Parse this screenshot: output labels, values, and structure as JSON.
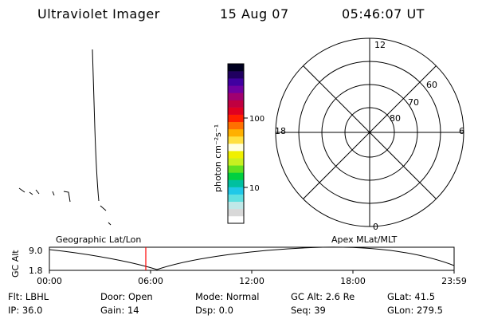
{
  "header": {
    "instrument": "Ultraviolet Imager",
    "date": "15 Aug 07",
    "time": "05:46:07 UT"
  },
  "colorbar": {
    "label": "photon cm⁻²s⁻¹",
    "tick_labels": [
      "100",
      "10"
    ],
    "colors": [
      "#ffffff",
      "#d8d8d8",
      "#c0e8e8",
      "#60e0e0",
      "#20c8e8",
      "#00c0a0",
      "#00d040",
      "#60e020",
      "#c8f020",
      "#f0f000",
      "#ffffe0",
      "#ffe040",
      "#ffb000",
      "#ff7000",
      "#ff2000",
      "#e00020",
      "#c00040",
      "#a00070",
      "#7000a0",
      "#4000a0",
      "#200060",
      "#000020"
    ]
  },
  "polar": {
    "lat_labels": [
      "60",
      "70",
      "80"
    ],
    "mlt_labels": {
      "top": "12",
      "left": "18",
      "right": "6",
      "bottom": "0"
    }
  },
  "altitude_plot": {
    "axis_label": "GC Alt",
    "y_ticks": [
      "9.0",
      "1.8"
    ],
    "left_title": "Geographic Lat/Lon",
    "right_title": "Apex MLat/MLT",
    "x_ticks": [
      "00:00",
      "06:00",
      "12:00",
      "18:00",
      "23:59"
    ]
  },
  "info": {
    "row1": [
      {
        "name": "Flt",
        "text": "Flt: LBHL"
      },
      {
        "name": "Door",
        "text": "Door: Open"
      },
      {
        "name": "Mode",
        "text": "Mode: Normal"
      },
      {
        "name": "GCAlt",
        "text": "GC Alt: 2.6 Re"
      },
      {
        "name": "GLat",
        "text": "GLat:  41.5"
      }
    ],
    "row2": [
      {
        "name": "IP",
        "text": "IP: 36.0"
      },
      {
        "name": "Gain",
        "text": "Gain: 14"
      },
      {
        "name": "Dsp",
        "text": "Dsp:     0.0"
      },
      {
        "name": "Seq",
        "text": "Seq: 39"
      },
      {
        "name": "GLon",
        "text": "GLon: 279.5"
      }
    ]
  }
}
